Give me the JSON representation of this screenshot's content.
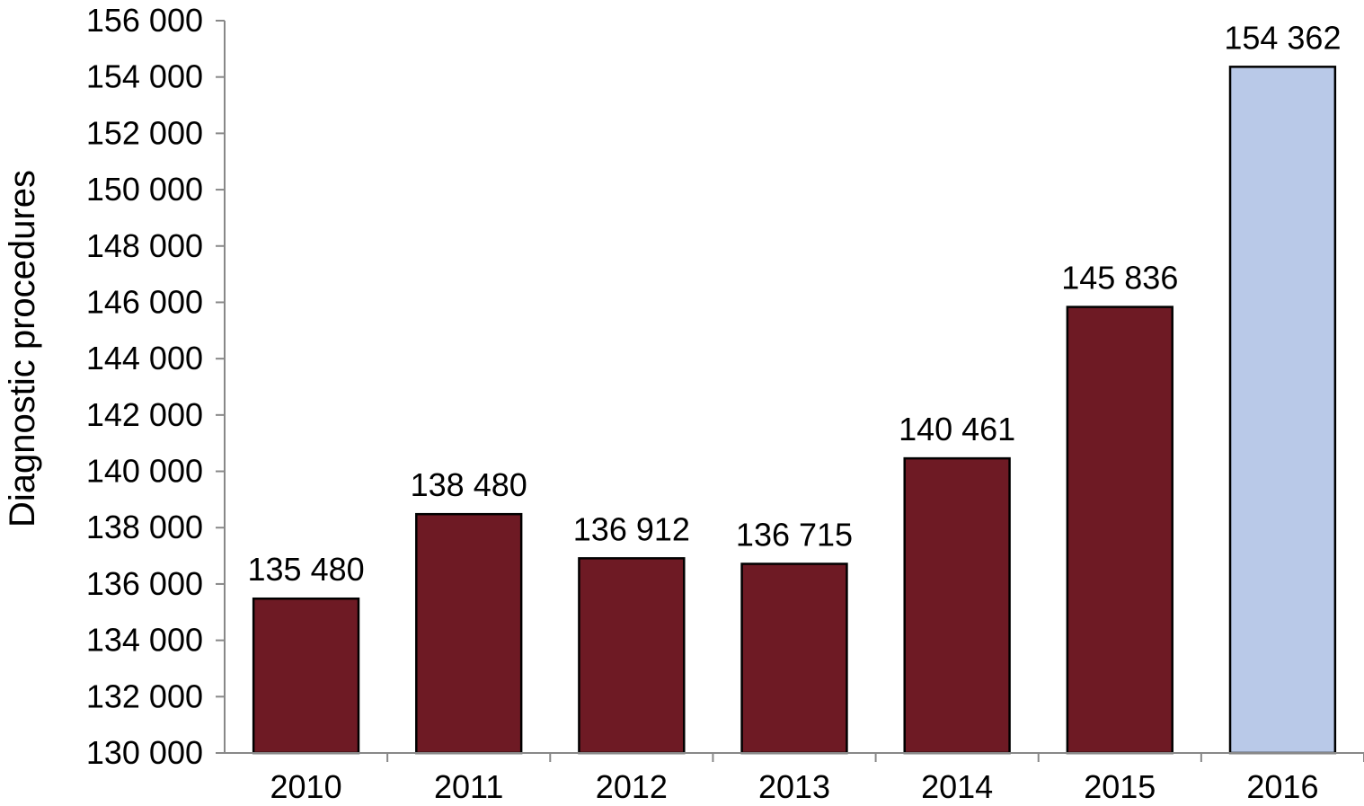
{
  "chart_data": {
    "type": "bar",
    "title": "",
    "xlabel": "",
    "ylabel": "Diagnostic procedures",
    "categories": [
      "2010",
      "2011",
      "2012",
      "2013",
      "2014",
      "2015",
      "2016"
    ],
    "values": [
      135480,
      138480,
      136912,
      136715,
      140461,
      145836,
      154362
    ],
    "value_labels": [
      "135 480",
      "138 480",
      "136 912",
      "136 715",
      "140 461",
      "145 836",
      "154 362"
    ],
    "bar_colors": [
      "#6e1a24",
      "#6e1a24",
      "#6e1a24",
      "#6e1a24",
      "#6e1a24",
      "#6e1a24",
      "#b9c9e8"
    ],
    "ylim": [
      130000,
      156000
    ],
    "yticks": [
      130000,
      132000,
      134000,
      136000,
      138000,
      140000,
      142000,
      144000,
      146000,
      148000,
      150000,
      152000,
      154000,
      156000
    ],
    "ytick_labels": [
      "130 000",
      "132 000",
      "134 000",
      "136 000",
      "138 000",
      "140 000",
      "142 000",
      "144 000",
      "146 000",
      "148 000",
      "150 000",
      "152 000",
      "154 000",
      "156 000"
    ],
    "grid": false,
    "legend": "none"
  }
}
